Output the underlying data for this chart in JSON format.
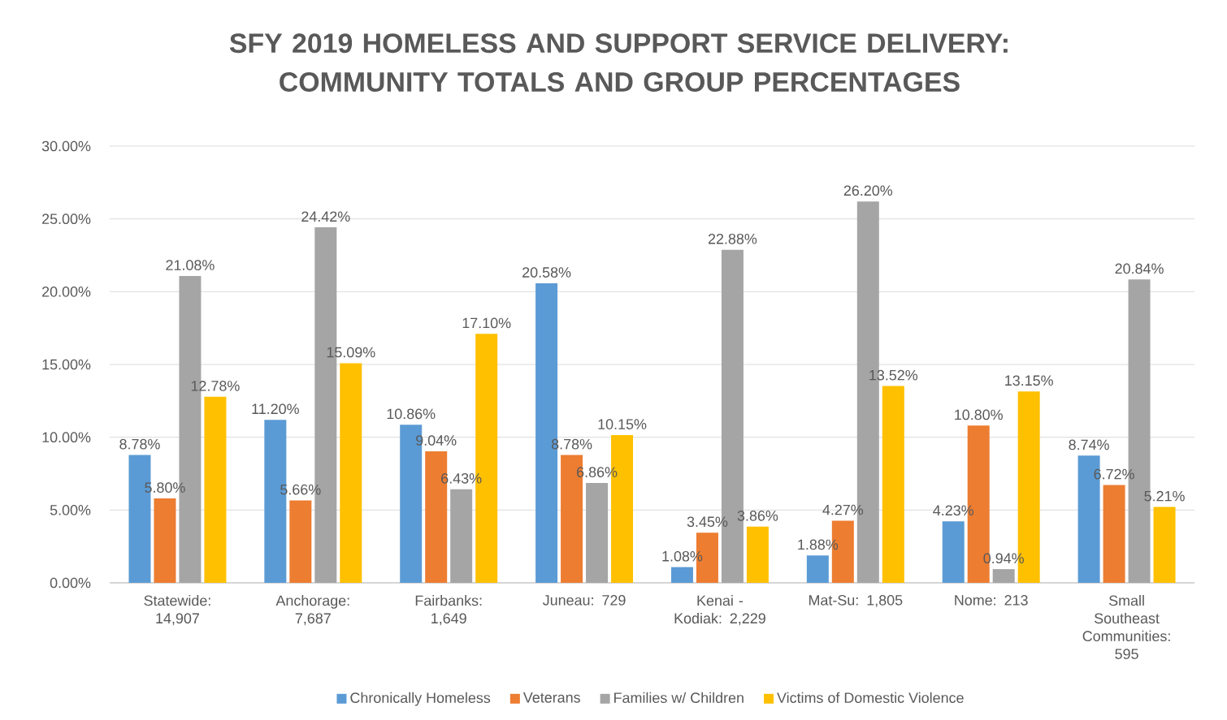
{
  "chart_data": {
    "type": "bar",
    "title": "SFY 2019 HOMELESS AND SUPPORT SERVICE DELIVERY: COMMUNITY TOTALS AND GROUP PERCENTAGES",
    "categories": [
      "Statewide: 14,907",
      "Anchorage: 7,687",
      "Fairbanks: 1,649",
      "Juneau: 729",
      "Kenai - Kodiak: 2,229",
      "Mat-Su: 1,805",
      "Nome: 213",
      "Small Southeast Communities: 595"
    ],
    "series": [
      {
        "name": "Chronically Homeless",
        "color": "#5b9bd5",
        "values": [
          8.78,
          11.2,
          10.86,
          20.58,
          1.08,
          1.88,
          4.23,
          8.74
        ],
        "value_labels": [
          "8.78%",
          "11.20%",
          "10.86%",
          "20.58%",
          "1.08%",
          "1.88%",
          "4.23%",
          "8.74%"
        ]
      },
      {
        "name": "Veterans",
        "color": "#ed7d31",
        "values": [
          5.8,
          5.66,
          9.04,
          8.78,
          3.45,
          4.27,
          10.8,
          6.72
        ],
        "value_labels": [
          "5.80%",
          "5.66%",
          "9.04%",
          "8.78%",
          "3.45%",
          "4.27%",
          "10.80%",
          "6.72%"
        ]
      },
      {
        "name": "Families w/ Children",
        "color": "#a5a5a5",
        "values": [
          21.08,
          24.42,
          6.43,
          6.86,
          22.88,
          26.2,
          0.94,
          20.84
        ],
        "value_labels": [
          "21.08%",
          "24.42%",
          "6.43%",
          "6.86%",
          "22.88%",
          "26.20%",
          "0.94%",
          "20.84%"
        ]
      },
      {
        "name": "Victims of Domestic Violence",
        "color": "#ffc000",
        "values": [
          12.78,
          15.09,
          17.1,
          10.15,
          3.86,
          13.52,
          13.15,
          5.21
        ],
        "value_labels": [
          "12.78%",
          "15.09%",
          "17.10%",
          "10.15%",
          "3.86%",
          "13.52%",
          "13.15%",
          "5.21%"
        ]
      }
    ],
    "ylim": [
      0,
      30
    ],
    "yticks": [
      {
        "value": 0,
        "label": "0.00%"
      },
      {
        "value": 5,
        "label": "5.00%"
      },
      {
        "value": 10,
        "label": "10.00%"
      },
      {
        "value": 15,
        "label": "15.00%"
      },
      {
        "value": 20,
        "label": "20.00%"
      },
      {
        "value": 25,
        "label": "25.00%"
      },
      {
        "value": 30,
        "label": "30.00%"
      }
    ],
    "grid": "y",
    "legend": "bottom"
  }
}
